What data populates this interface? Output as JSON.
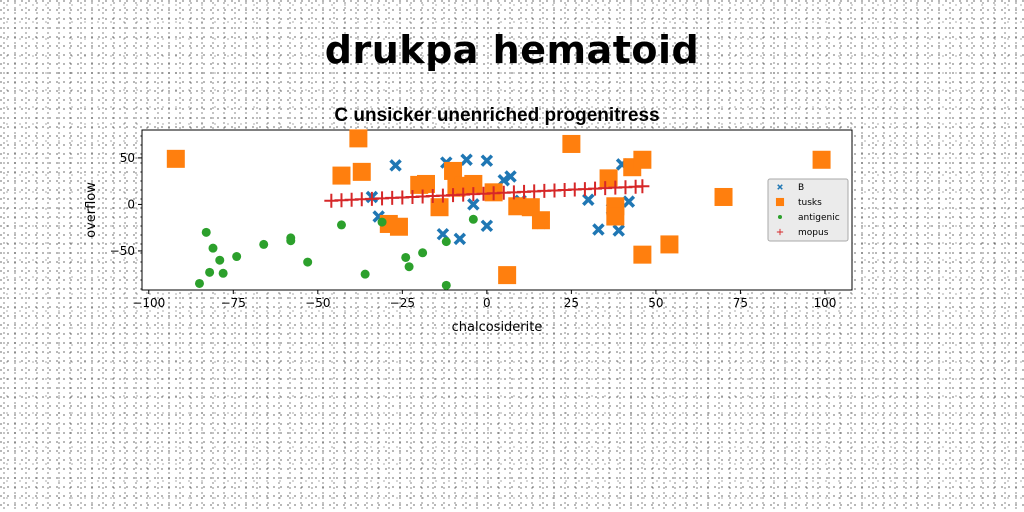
{
  "suptitle": "drukpa hematoid",
  "chart_data": {
    "type": "scatter",
    "title": "C unsicker unenriched progenitress",
    "xlabel": "chalcosiderite",
    "ylabel": "overflow",
    "xlim": [
      -102,
      108
    ],
    "ylim": [
      -92,
      80
    ],
    "xticks": [
      -100,
      -75,
      -50,
      -25,
      0,
      25,
      50,
      75,
      100
    ],
    "yticks": [
      -50,
      0,
      50
    ],
    "grid": false,
    "legend_position": "right",
    "series": [
      {
        "name": "B",
        "marker": "x",
        "color": "#1f77b4",
        "points": [
          [
            -34,
            8
          ],
          [
            -32,
            -13
          ],
          [
            -27,
            42
          ],
          [
            -13,
            -32
          ],
          [
            -12,
            45
          ],
          [
            -8,
            -37
          ],
          [
            -6,
            48
          ],
          [
            -4,
            0
          ],
          [
            0,
            47
          ],
          [
            0,
            -23
          ],
          [
            5,
            26
          ],
          [
            7,
            30
          ],
          [
            10,
            4
          ],
          [
            16,
            -20
          ],
          [
            30,
            5
          ],
          [
            33,
            -27
          ],
          [
            39,
            -28
          ],
          [
            40,
            43
          ],
          [
            42,
            3
          ],
          [
            37,
            -5
          ]
        ]
      },
      {
        "name": "tusks",
        "marker": "square",
        "color": "#ff7f0e",
        "points": [
          [
            -92,
            49
          ],
          [
            -43,
            31
          ],
          [
            -38,
            71
          ],
          [
            -37,
            35
          ],
          [
            -29,
            -21
          ],
          [
            -26,
            -24
          ],
          [
            -20,
            21
          ],
          [
            -18,
            22
          ],
          [
            -14,
            -3
          ],
          [
            -10,
            36
          ],
          [
            -9,
            18
          ],
          [
            -7,
            20
          ],
          [
            -4,
            22
          ],
          [
            2,
            13
          ],
          [
            6,
            -76
          ],
          [
            9,
            -2
          ],
          [
            13,
            -3
          ],
          [
            16,
            -17
          ],
          [
            25,
            65
          ],
          [
            36,
            28
          ],
          [
            38,
            -2
          ],
          [
            38,
            -13
          ],
          [
            43,
            40
          ],
          [
            46,
            48
          ],
          [
            46,
            -54
          ],
          [
            54,
            -43
          ],
          [
            70,
            8
          ],
          [
            99,
            48
          ]
        ]
      },
      {
        "name": "antigenic",
        "marker": "circle",
        "color": "#2ca02c",
        "points": [
          [
            -85,
            -85
          ],
          [
            -83,
            -30
          ],
          [
            -82,
            -73
          ],
          [
            -81,
            -47
          ],
          [
            -79,
            -60
          ],
          [
            -78,
            -74
          ],
          [
            -74,
            -56
          ],
          [
            -66,
            -43
          ],
          [
            -58,
            -39
          ],
          [
            -58,
            -36
          ],
          [
            -53,
            -62
          ],
          [
            -43,
            -22
          ],
          [
            -36,
            -75
          ],
          [
            -31,
            -19
          ],
          [
            -24,
            -57
          ],
          [
            -23,
            -67
          ],
          [
            -19,
            -52
          ],
          [
            -12,
            -87
          ],
          [
            -12,
            -40
          ],
          [
            -4,
            -16
          ]
        ]
      },
      {
        "name": "mopus",
        "marker": "plus",
        "color": "#d62728",
        "points": [
          [
            -46,
            4
          ],
          [
            -43,
            4.5
          ],
          [
            -40,
            5
          ],
          [
            -37,
            5.5
          ],
          [
            -34,
            6
          ],
          [
            -31,
            6.5
          ],
          [
            -28,
            7
          ],
          [
            -25,
            7.5
          ],
          [
            -22,
            8
          ],
          [
            -19,
            8.5
          ],
          [
            -16,
            9
          ],
          [
            -13,
            9.5
          ],
          [
            -10,
            10
          ],
          [
            -7,
            10.5
          ],
          [
            -4,
            11
          ],
          [
            -1,
            11.5
          ],
          [
            2,
            12
          ],
          [
            5,
            12.5
          ],
          [
            8,
            13
          ],
          [
            11,
            13.5
          ],
          [
            14,
            14
          ],
          [
            17,
            14.5
          ],
          [
            20,
            15
          ],
          [
            23,
            15.5
          ],
          [
            26,
            16
          ],
          [
            29,
            16.5
          ],
          [
            32,
            17
          ],
          [
            35,
            17.5
          ],
          [
            38,
            18
          ],
          [
            41,
            18.5
          ],
          [
            44,
            19
          ],
          [
            46,
            19.5
          ]
        ]
      }
    ]
  }
}
